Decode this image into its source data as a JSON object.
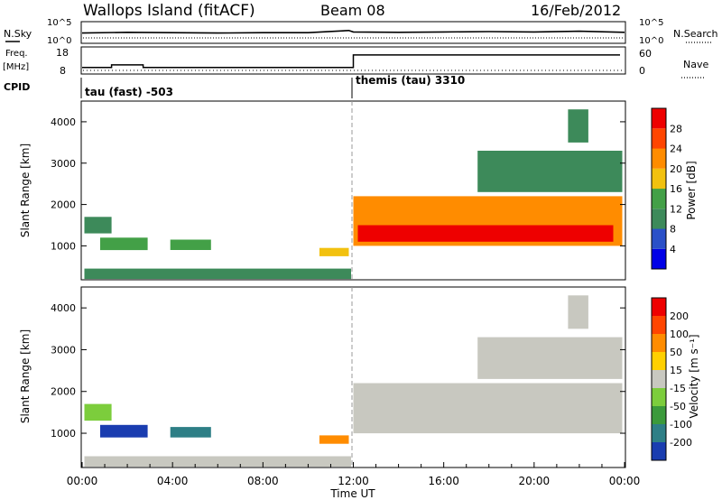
{
  "header": {
    "station": "Wallops Island (fitACF)",
    "beam": "Beam 08",
    "date": "16/Feb/2012"
  },
  "chart_data": [
    {
      "type": "line",
      "panel": "noise",
      "left_label": "N.Sky",
      "right_label": "N.Search",
      "left_ticks": [
        "10^5",
        "10^0"
      ],
      "right_ticks": [
        "10^5",
        "10^0"
      ],
      "x_hours": [
        0,
        2,
        4,
        6,
        8,
        10,
        11.8,
        12,
        14,
        16,
        18,
        20,
        22,
        24
      ],
      "nsky_level": [
        2.1,
        2.3,
        2.2,
        2.1,
        2.2,
        2.2,
        2.8,
        2.4,
        2.3,
        2.4,
        2.5,
        2.4,
        2.6,
        2.3
      ]
    },
    {
      "type": "line",
      "panel": "frequency",
      "left_label": "Freq.",
      "left_unit": "[MHz]",
      "right_label": "Nave",
      "left_ticks": [
        "18",
        "8"
      ],
      "right_ticks": [
        "60",
        "0"
      ],
      "ylim": [
        8,
        18
      ],
      "freq_steps": [
        {
          "x0": 0,
          "x1": 1.3,
          "mhz": 10.4
        },
        {
          "x0": 1.3,
          "x1": 2.7,
          "mhz": 11.7
        },
        {
          "x0": 2.7,
          "x1": 12.0,
          "mhz": 10.4
        },
        {
          "x0": 12.0,
          "x1": 23.8,
          "mhz": 16.7
        }
      ]
    },
    {
      "type": "table",
      "panel": "cpid",
      "label": "CPID",
      "segments": [
        {
          "start_hour": 0,
          "name": "tau (fast) -503"
        },
        {
          "start_hour": 12,
          "name": "themis (tau) 3310"
        }
      ]
    },
    {
      "type": "heatmap",
      "panel": "power",
      "ylabel": "Slant Range [km]",
      "yticks": [
        1000,
        2000,
        3000,
        4000
      ],
      "ylim": [
        180,
        4500
      ],
      "colorbar_label": "Power [dB]",
      "colorbar_ticks": [
        "28",
        "24",
        "20",
        "16",
        "12",
        "8",
        "4"
      ],
      "colors": [
        "#0000e6",
        "#2a50c8",
        "#3d8a5a",
        "#43a047",
        "#f2c10f",
        "#ff8c00",
        "#ff4500",
        "#ee0000"
      ],
      "echo_regions": [
        {
          "h0": 0.1,
          "h1": 1.3,
          "r0": 1300,
          "r1": 1700,
          "level": 2
        },
        {
          "h0": 0.8,
          "h1": 2.9,
          "r0": 900,
          "r1": 1200,
          "level": 3
        },
        {
          "h0": 3.9,
          "h1": 5.7,
          "r0": 900,
          "r1": 1150,
          "level": 3
        },
        {
          "h0": 0.1,
          "h1": 11.9,
          "r0": 200,
          "r1": 450,
          "level": 2
        },
        {
          "h0": 10.5,
          "h1": 11.8,
          "r0": 750,
          "r1": 950,
          "level": 4
        },
        {
          "h0": 12.0,
          "h1": 23.9,
          "r0": 1000,
          "r1": 2200,
          "level": 5
        },
        {
          "h0": 12.2,
          "h1": 23.5,
          "r0": 1100,
          "r1": 1500,
          "level": 7
        },
        {
          "h0": 17.5,
          "h1": 23.9,
          "r0": 2300,
          "r1": 3300,
          "level": 2
        },
        {
          "h0": 21.5,
          "h1": 22.4,
          "r0": 3500,
          "r1": 4300,
          "level": 2
        }
      ]
    },
    {
      "type": "heatmap",
      "panel": "velocity",
      "ylabel": "Slant Range [km]",
      "yticks": [
        1000,
        2000,
        3000,
        4000
      ],
      "ylim": [
        180,
        4500
      ],
      "xlabel": "Time UT",
      "xticks": [
        "00:00",
        "04:00",
        "08:00",
        "12:00",
        "16:00",
        "20:00",
        "00:00"
      ],
      "colorbar_label": "Velocity [m s⁻¹]",
      "colorbar_ticks": [
        "200",
        "100",
        "50",
        "15",
        "-15",
        "-50",
        "-100",
        "-200"
      ],
      "colors": [
        "#1a3db0",
        "#2e7f86",
        "#3b9a3b",
        "#7ccd3c",
        "#c8c8c0",
        "#ffd000",
        "#ff8c00",
        "#ff4500",
        "#ee0000"
      ],
      "echo_regions": [
        {
          "h0": 0.1,
          "h1": 1.3,
          "r0": 1300,
          "r1": 1700,
          "level": 3
        },
        {
          "h0": 0.8,
          "h1": 2.9,
          "r0": 900,
          "r1": 1200,
          "level": 0
        },
        {
          "h0": 3.9,
          "h1": 5.7,
          "r0": 900,
          "r1": 1150,
          "level": 1
        },
        {
          "h0": 0.1,
          "h1": 11.9,
          "r0": 200,
          "r1": 450,
          "level": 4
        },
        {
          "h0": 10.5,
          "h1": 11.8,
          "r0": 750,
          "r1": 950,
          "level": 6
        },
        {
          "h0": 12.0,
          "h1": 23.9,
          "r0": 1000,
          "r1": 2200,
          "level": 4
        },
        {
          "h0": 17.5,
          "h1": 23.9,
          "r0": 2300,
          "r1": 3300,
          "level": 4
        },
        {
          "h0": 21.5,
          "h1": 22.4,
          "r0": 3500,
          "r1": 4300,
          "level": 4
        }
      ]
    }
  ]
}
